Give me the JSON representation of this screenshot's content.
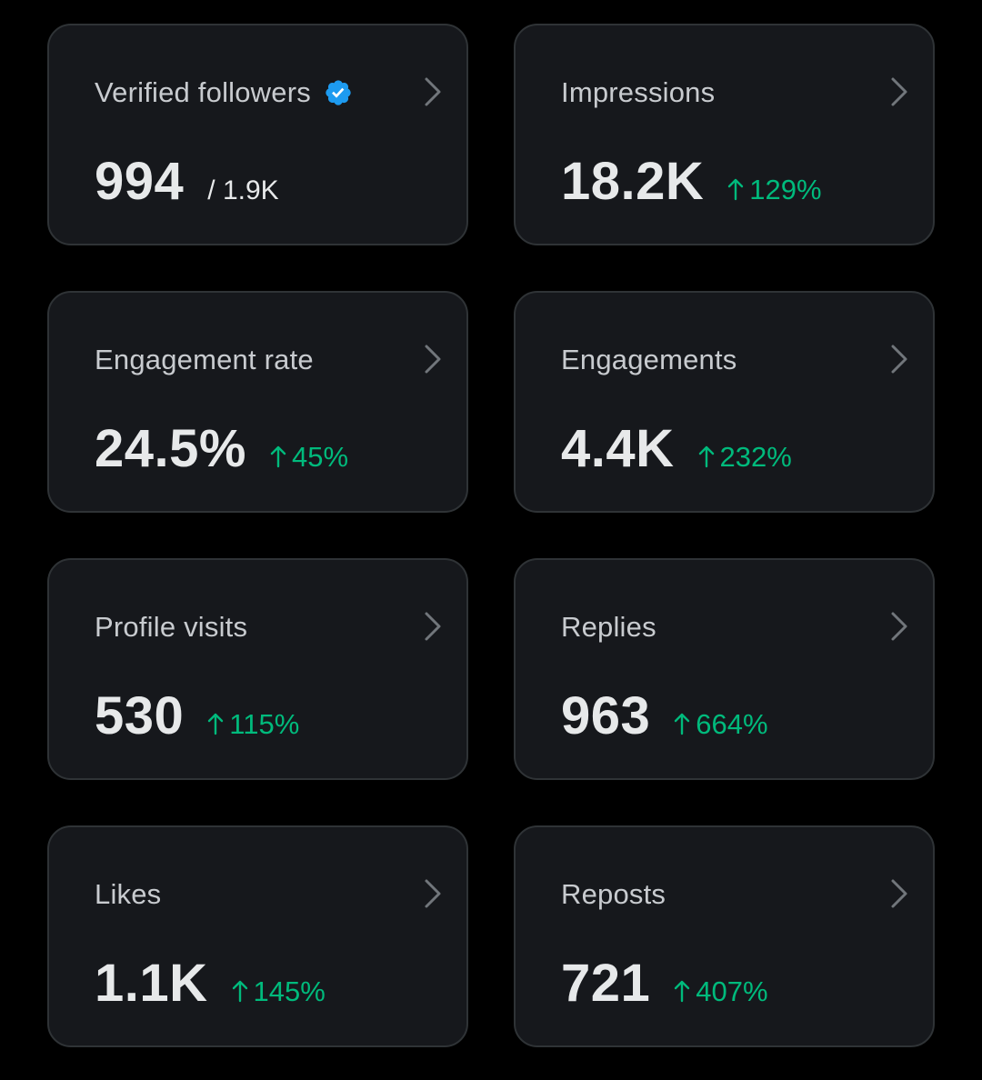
{
  "colors": {
    "background": "#000000",
    "card": "#16181c",
    "border": "#2f3336",
    "title": "#c8cbcf",
    "value": "#e7e9ea",
    "positive": "#00ba7c",
    "verified": "#1d9bf0"
  },
  "cards": [
    {
      "title": "Verified followers",
      "value": "994",
      "sub": "/ 1.9K",
      "icon": "verified-badge-icon"
    },
    {
      "title": "Impressions",
      "value": "18.2K",
      "change": "129%",
      "direction": "up"
    },
    {
      "title": "Engagement rate",
      "value": "24.5%",
      "change": "45%",
      "direction": "up"
    },
    {
      "title": "Engagements",
      "value": "4.4K",
      "change": "232%",
      "direction": "up"
    },
    {
      "title": "Profile visits",
      "value": "530",
      "change": "115%",
      "direction": "up"
    },
    {
      "title": "Replies",
      "value": "963",
      "change": "664%",
      "direction": "up"
    },
    {
      "title": "Likes",
      "value": "1.1K",
      "change": "145%",
      "direction": "up"
    },
    {
      "title": "Reposts",
      "value": "721",
      "change": "407%",
      "direction": "up"
    }
  ]
}
